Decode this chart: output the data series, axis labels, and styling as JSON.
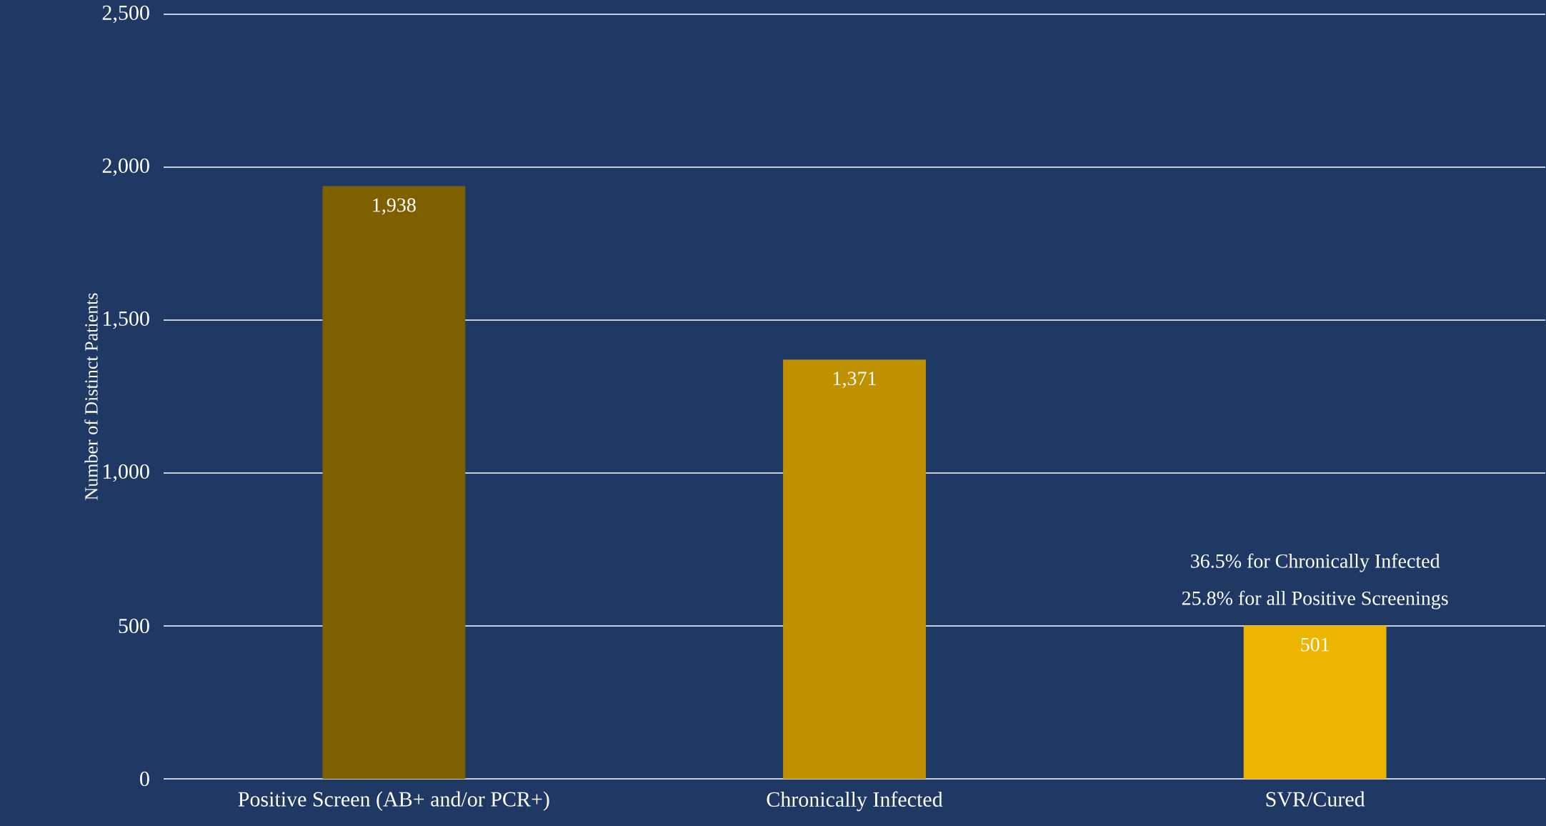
{
  "chart_data": {
    "type": "bar",
    "ylabel": "Number of  Distinct Patients",
    "categories": [
      "Positive Screen (AB+ and/or PCR+)",
      "Chronically Infected",
      "SVR/Cured"
    ],
    "values": [
      1938,
      1371,
      501
    ],
    "colors": [
      "#7f6000",
      "#bf9000",
      "#edb500"
    ],
    "value_labels": [
      "1,938",
      "1,371",
      "501"
    ],
    "ylim": [
      0,
      2500
    ],
    "yticks": [
      0,
      500,
      {
        "value": 1000,
        "label": "1,000"
      },
      {
        "value": 1500,
        "label": "1,500"
      },
      {
        "value": 2000,
        "label": "2,000"
      },
      {
        "value": 2500,
        "label": "2,500"
      }
    ],
    "grid": "y",
    "annotations": [
      "36.5% for Chronically Infected",
      "25.8% for all Positive Screenings"
    ]
  }
}
